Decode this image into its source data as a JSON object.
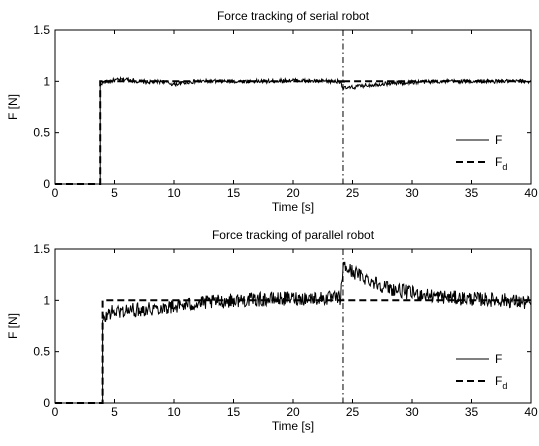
{
  "chart_data": [
    {
      "type": "line",
      "title": "Force tracking of serial robot",
      "xlabel": "Time [s]",
      "ylabel": "F [N]",
      "xlim": [
        0,
        40
      ],
      "ylim": [
        0,
        1.5
      ],
      "xticks": [
        "0",
        "5",
        "10",
        "15",
        "20",
        "25",
        "30",
        "35",
        "40"
      ],
      "yticks": [
        "0",
        "0.5",
        "1",
        "1.5"
      ],
      "legend": {
        "placement": "bottom-right",
        "entries": [
          {
            "label": "F"
          },
          {
            "label": "F",
            "subscript": "d"
          }
        ]
      },
      "event_marker_x": 24.2,
      "series": [
        {
          "name": "F",
          "style": "solid",
          "points": [
            [
              0,
              0
            ],
            [
              3.8,
              0
            ],
            [
              3.8,
              0.97
            ],
            [
              4,
              0.99
            ],
            [
              5,
              1.01
            ],
            [
              6,
              1.02
            ],
            [
              7,
              1.0
            ],
            [
              8,
              0.99
            ],
            [
              9,
              1.0
            ],
            [
              10,
              0.97
            ],
            [
              11,
              0.99
            ],
            [
              12,
              1.0
            ],
            [
              14,
              1.0
            ],
            [
              16,
              1.0
            ],
            [
              18,
              1.0
            ],
            [
              20,
              1.01
            ],
            [
              22,
              1.0
            ],
            [
              24,
              1.0
            ],
            [
              24.2,
              0.93
            ],
            [
              25,
              0.94
            ],
            [
              26,
              0.96
            ],
            [
              27,
              0.97
            ],
            [
              28,
              0.98
            ],
            [
              30,
              0.99
            ],
            [
              32,
              1.0
            ],
            [
              34,
              1.0
            ],
            [
              36,
              1.0
            ],
            [
              38,
              1.0
            ],
            [
              40,
              1.0
            ]
          ],
          "noise": 0.02
        },
        {
          "name": "F_d",
          "style": "dashed",
          "points": [
            [
              0,
              0
            ],
            [
              3.8,
              0
            ],
            [
              3.8,
              1.0
            ],
            [
              24.2,
              1.0
            ],
            [
              24.2,
              0.97
            ],
            [
              24.3,
              1.0
            ],
            [
              40,
              1.0
            ]
          ]
        }
      ]
    },
    {
      "type": "line",
      "title": "Force tracking of parallel robot",
      "xlabel": "Time [s]",
      "ylabel": "F [N]",
      "xlim": [
        0,
        40
      ],
      "ylim": [
        0,
        1.5
      ],
      "xticks": [
        "0",
        "5",
        "10",
        "15",
        "20",
        "25",
        "30",
        "35",
        "40"
      ],
      "yticks": [
        "0",
        "0.5",
        "1",
        "1.5"
      ],
      "legend": {
        "placement": "bottom-right",
        "entries": [
          {
            "label": "F"
          },
          {
            "label": "F",
            "subscript": "d"
          }
        ]
      },
      "event_marker_x": 24.2,
      "series": [
        {
          "name": "F",
          "style": "solid",
          "points": [
            [
              0,
              0
            ],
            [
              4,
              0
            ],
            [
              4,
              0.78
            ],
            [
              4.5,
              0.88
            ],
            [
              6,
              0.9
            ],
            [
              8,
              0.92
            ],
            [
              10,
              0.94
            ],
            [
              12,
              0.97
            ],
            [
              15,
              1.0
            ],
            [
              18,
              1.01
            ],
            [
              20,
              1.02
            ],
            [
              22,
              1.02
            ],
            [
              24,
              1.02
            ],
            [
              24.2,
              1.33
            ],
            [
              25,
              1.28
            ],
            [
              26,
              1.22
            ],
            [
              27,
              1.17
            ],
            [
              28,
              1.12
            ],
            [
              30,
              1.07
            ],
            [
              32,
              1.04
            ],
            [
              34,
              1.02
            ],
            [
              36,
              1.01
            ],
            [
              38,
              1.0
            ],
            [
              40,
              0.97
            ]
          ],
          "noise": 0.07
        },
        {
          "name": "F_d",
          "style": "dashed",
          "points": [
            [
              0,
              0
            ],
            [
              4,
              0
            ],
            [
              4,
              1.0
            ],
            [
              40,
              1.0
            ]
          ]
        }
      ]
    }
  ]
}
